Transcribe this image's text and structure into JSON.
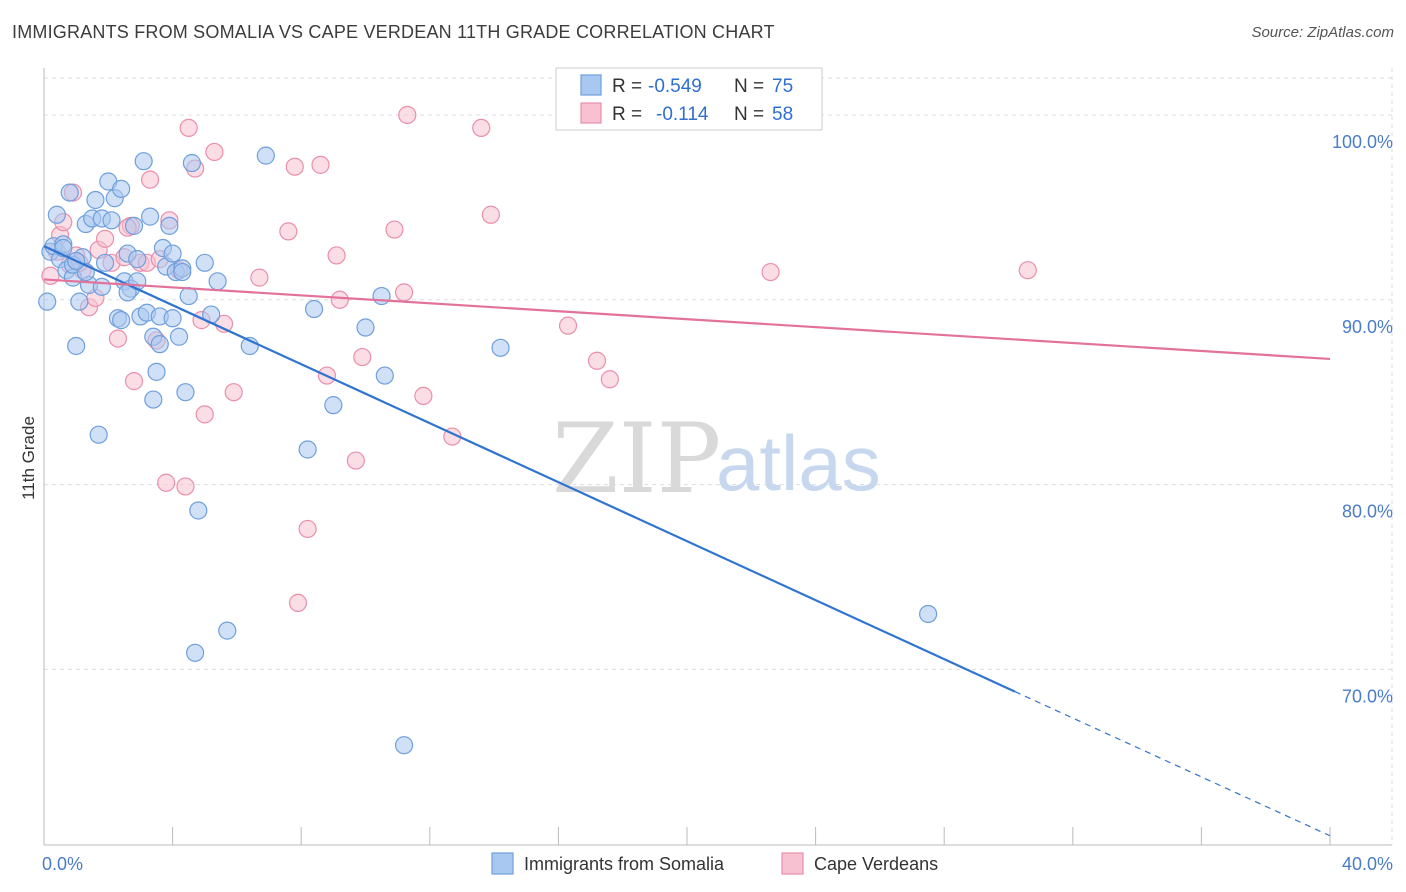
{
  "title": "IMMIGRANTS FROM SOMALIA VS CAPE VERDEAN 11TH GRADE CORRELATION CHART",
  "source": "Source: ZipAtlas.com",
  "watermark": {
    "zip": "ZIP",
    "atlas": "atlas"
  },
  "colors": {
    "blue_fill": "#a9c8f0",
    "blue_stroke": "#6f9fdc",
    "blue_line": "#2f74d0",
    "pink_fill": "#f7c1d2",
    "pink_stroke": "#ea8fab",
    "pink_line": "#e2729a",
    "grid": "#dddddd",
    "tick_text": "#4a7cc9"
  },
  "legend": {
    "rows": [
      {
        "r_label": "R =",
        "r_value": "-0.549",
        "n_label": "N =",
        "n_value": "75"
      },
      {
        "r_label": "R =",
        "r_value": "-0.114",
        "n_label": "N =",
        "n_value": "58"
      }
    ]
  },
  "chart_data": {
    "type": "scatter",
    "title": "IMMIGRANTS FROM SOMALIA VS CAPE VERDEAN 11TH GRADE CORRELATION CHART",
    "xlabel": "",
    "ylabel": "11th Grade",
    "xlim": [
      0,
      40
    ],
    "ylim": [
      60.5,
      102
    ],
    "x_tick_labels": [
      "0.0%",
      "40.0%"
    ],
    "y_ticks": [
      70,
      80,
      90,
      100
    ],
    "y_tick_labels": [
      "70.0%",
      "80.0%",
      "90.0%",
      "100.0%"
    ],
    "grid": true,
    "legend_position": "bottom-center",
    "series": [
      {
        "name": "Immigrants from Somalia",
        "color": "#a9c8f0",
        "trend": {
          "x": [
            0,
            30.2
          ],
          "y": [
            92.9,
            68.8
          ],
          "dashed_to": [
            40,
            61.0
          ]
        },
        "points": [
          [
            0.1,
            89.9
          ],
          [
            0.2,
            92.6
          ],
          [
            0.3,
            92.9
          ],
          [
            0.4,
            94.6
          ],
          [
            0.5,
            92.2
          ],
          [
            0.6,
            93.0
          ],
          [
            0.7,
            91.6
          ],
          [
            0.8,
            95.8
          ],
          [
            0.9,
            91.2
          ],
          [
            1.0,
            87.5
          ],
          [
            1.1,
            89.9
          ],
          [
            1.2,
            92.3
          ],
          [
            1.3,
            94.1
          ],
          [
            1.4,
            90.8
          ],
          [
            1.5,
            94.4
          ],
          [
            1.6,
            95.4
          ],
          [
            1.7,
            82.7
          ],
          [
            1.8,
            94.4
          ],
          [
            1.9,
            92.0
          ],
          [
            2.0,
            96.4
          ],
          [
            2.1,
            94.3
          ],
          [
            2.2,
            95.5
          ],
          [
            2.3,
            89.0
          ],
          [
            2.4,
            96.0
          ],
          [
            2.5,
            91.0
          ],
          [
            2.6,
            92.5
          ],
          [
            2.7,
            90.6
          ],
          [
            2.8,
            94.0
          ],
          [
            2.9,
            91.0
          ],
          [
            3.0,
            89.1
          ],
          [
            3.1,
            97.5
          ],
          [
            3.2,
            89.3
          ],
          [
            3.3,
            94.5
          ],
          [
            3.4,
            84.6
          ],
          [
            3.5,
            86.1
          ],
          [
            3.6,
            89.1
          ],
          [
            3.7,
            92.8
          ],
          [
            3.8,
            91.8
          ],
          [
            3.9,
            94.0
          ],
          [
            4.0,
            92.5
          ],
          [
            4.1,
            91.5
          ],
          [
            4.2,
            88.0
          ],
          [
            4.3,
            91.7
          ],
          [
            4.4,
            85.0
          ],
          [
            4.5,
            90.2
          ],
          [
            4.6,
            97.4
          ],
          [
            4.7,
            70.9
          ],
          [
            4.8,
            78.6
          ],
          [
            5.0,
            92.0
          ],
          [
            5.2,
            89.2
          ],
          [
            5.4,
            91.0
          ],
          [
            5.7,
            72.1
          ],
          [
            6.4,
            87.5
          ],
          [
            6.9,
            97.8
          ],
          [
            8.2,
            81.9
          ],
          [
            8.4,
            89.5
          ],
          [
            9.0,
            84.3
          ],
          [
            10.0,
            88.5
          ],
          [
            10.5,
            90.2
          ],
          [
            10.6,
            85.9
          ],
          [
            11.2,
            65.9
          ],
          [
            14.2,
            87.4
          ],
          [
            27.5,
            73.0
          ],
          [
            0.6,
            92.8
          ],
          [
            0.9,
            91.9
          ],
          [
            1.3,
            91.5
          ],
          [
            1.8,
            90.7
          ],
          [
            2.4,
            88.9
          ],
          [
            2.9,
            92.2
          ],
          [
            3.4,
            88.0
          ],
          [
            3.6,
            87.6
          ],
          [
            4.0,
            89.0
          ],
          [
            4.3,
            91.5
          ],
          [
            1.0,
            92.1
          ],
          [
            2.6,
            90.4
          ]
        ]
      },
      {
        "name": "Cape Verdeans",
        "color": "#f7c1d2",
        "trend": {
          "x": [
            0,
            40
          ],
          "y": [
            91.1,
            86.8
          ]
        },
        "points": [
          [
            0.2,
            91.3
          ],
          [
            0.4,
            92.6
          ],
          [
            0.5,
            93.5
          ],
          [
            0.6,
            94.2
          ],
          [
            0.8,
            91.9
          ],
          [
            0.9,
            95.8
          ],
          [
            1.0,
            92.4
          ],
          [
            1.2,
            91.6
          ],
          [
            1.4,
            89.6
          ],
          [
            1.6,
            90.1
          ],
          [
            1.7,
            92.7
          ],
          [
            1.9,
            93.3
          ],
          [
            2.1,
            92.0
          ],
          [
            2.3,
            87.9
          ],
          [
            2.5,
            92.3
          ],
          [
            2.7,
            94.0
          ],
          [
            2.8,
            85.6
          ],
          [
            3.0,
            92.0
          ],
          [
            3.2,
            92.0
          ],
          [
            3.3,
            96.5
          ],
          [
            3.5,
            87.8
          ],
          [
            3.6,
            92.2
          ],
          [
            3.8,
            80.1
          ],
          [
            3.9,
            94.3
          ],
          [
            4.2,
            91.6
          ],
          [
            4.4,
            79.9
          ],
          [
            4.5,
            99.3
          ],
          [
            4.7,
            97.1
          ],
          [
            4.9,
            88.9
          ],
          [
            5.0,
            83.8
          ],
          [
            5.3,
            98.0
          ],
          [
            5.6,
            88.7
          ],
          [
            5.9,
            85.0
          ],
          [
            6.7,
            91.2
          ],
          [
            7.6,
            93.7
          ],
          [
            7.8,
            97.2
          ],
          [
            7.9,
            73.6
          ],
          [
            8.2,
            77.6
          ],
          [
            8.6,
            97.3
          ],
          [
            8.8,
            85.9
          ],
          [
            9.1,
            92.4
          ],
          [
            9.2,
            90.0
          ],
          [
            9.7,
            81.3
          ],
          [
            9.9,
            86.9
          ],
          [
            10.9,
            93.8
          ],
          [
            11.2,
            90.4
          ],
          [
            11.3,
            100.0
          ],
          [
            11.8,
            84.8
          ],
          [
            12.7,
            82.6
          ],
          [
            13.6,
            99.3
          ],
          [
            13.9,
            94.6
          ],
          [
            16.3,
            88.6
          ],
          [
            17.2,
            86.7
          ],
          [
            17.6,
            85.7
          ],
          [
            22.6,
            91.5
          ],
          [
            30.6,
            91.6
          ],
          [
            1.1,
            92.0
          ],
          [
            2.6,
            93.9
          ]
        ]
      }
    ]
  },
  "bottom_legend": [
    {
      "label": "Immigrants from Somalia"
    },
    {
      "label": "Cape Verdeans"
    }
  ]
}
